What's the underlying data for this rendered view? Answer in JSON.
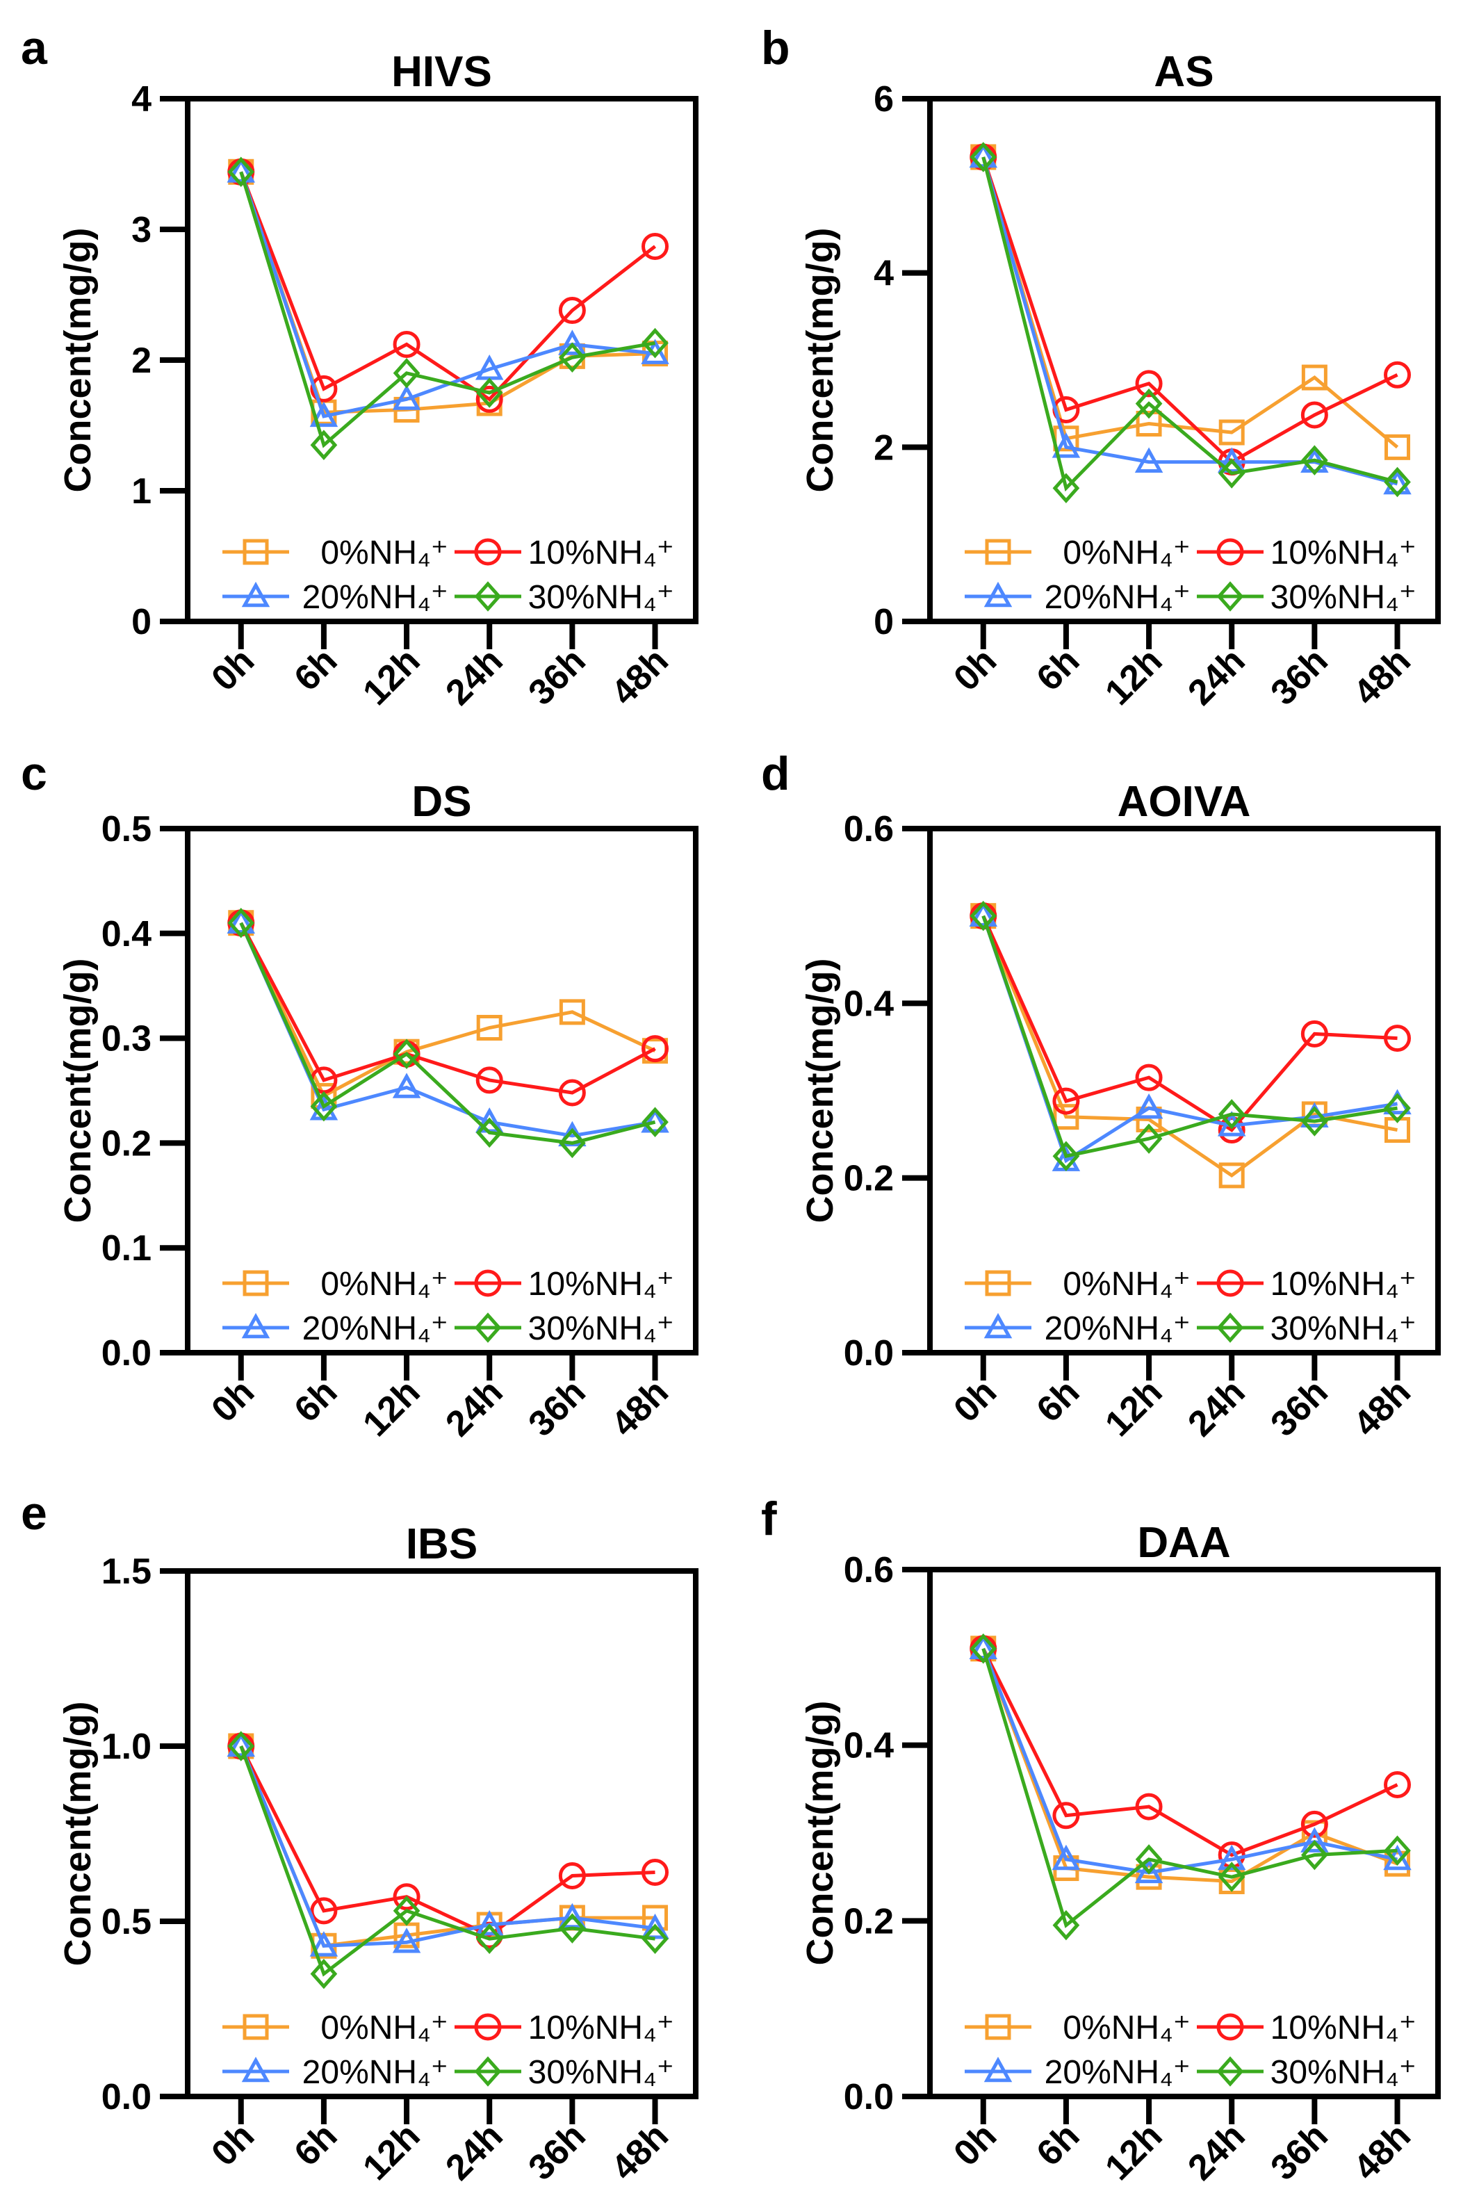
{
  "chart_data": [
    {
      "type": "line",
      "letter": "a",
      "title": "HIVS",
      "ylabel": "Concent(mg/g)",
      "categories": [
        "0h",
        "6h",
        "12h",
        "24h",
        "36h",
        "48h"
      ],
      "ylim": [
        0,
        4
      ],
      "yticks": [
        "0",
        "1",
        "2",
        "3",
        "4"
      ],
      "ytick_values": [
        0,
        1,
        2,
        3,
        4
      ],
      "legend": "bottom-inside",
      "series": [
        {
          "name": "0%NH₄⁺",
          "color": "#F7A030",
          "marker": "square",
          "values": [
            3.44,
            1.6,
            1.62,
            1.67,
            2.03,
            2.05
          ]
        },
        {
          "name": "10%NH₄⁺",
          "color": "#FF1A1A",
          "marker": "circle",
          "values": [
            3.44,
            1.78,
            2.12,
            1.7,
            2.38,
            2.87
          ]
        },
        {
          "name": "20%NH₄⁺",
          "color": "#4D88FF",
          "marker": "triangle",
          "values": [
            3.44,
            1.57,
            1.7,
            1.93,
            2.12,
            2.05
          ]
        },
        {
          "name": "30%NH₄⁺",
          "color": "#3AAA1E",
          "marker": "diamond",
          "values": [
            3.44,
            1.35,
            1.9,
            1.75,
            2.02,
            2.13
          ]
        }
      ]
    },
    {
      "type": "line",
      "letter": "b",
      "title": "AS",
      "ylabel": "Concent(mg/g)",
      "categories": [
        "0h",
        "6h",
        "12h",
        "24h",
        "36h",
        "48h"
      ],
      "ylim": [
        0,
        6
      ],
      "yticks": [
        "0",
        "2",
        "4",
        "6"
      ],
      "ytick_values": [
        0,
        2,
        4,
        6
      ],
      "legend": "bottom-inside",
      "series": [
        {
          "name": "0%NH₄⁺",
          "color": "#F7A030",
          "marker": "square",
          "values": [
            5.33,
            2.1,
            2.27,
            2.17,
            2.8,
            2.0
          ]
        },
        {
          "name": "10%NH₄⁺",
          "color": "#FF1A1A",
          "marker": "circle",
          "values": [
            5.33,
            2.43,
            2.73,
            1.83,
            2.37,
            2.83
          ]
        },
        {
          "name": "20%NH₄⁺",
          "color": "#4D88FF",
          "marker": "triangle",
          "values": [
            5.33,
            2.0,
            1.83,
            1.83,
            1.83,
            1.58
          ]
        },
        {
          "name": "30%NH₄⁺",
          "color": "#3AAA1E",
          "marker": "diamond",
          "values": [
            5.33,
            1.53,
            2.5,
            1.7,
            1.85,
            1.6
          ]
        }
      ]
    },
    {
      "type": "line",
      "letter": "c",
      "title": "DS",
      "ylabel": "Concent(mg/g)",
      "categories": [
        "0h",
        "6h",
        "12h",
        "24h",
        "36h",
        "48h"
      ],
      "ylim": [
        0,
        0.5
      ],
      "yticks": [
        "0.0",
        "0.1",
        "0.2",
        "0.3",
        "0.4",
        "0.5"
      ],
      "ytick_values": [
        0,
        0.1,
        0.2,
        0.3,
        0.4,
        0.5
      ],
      "legend": "bottom-inside",
      "series": [
        {
          "name": "0%NH₄⁺",
          "color": "#F7A030",
          "marker": "square",
          "values": [
            0.41,
            0.245,
            0.287,
            0.31,
            0.325,
            0.288
          ]
        },
        {
          "name": "10%NH₄⁺",
          "color": "#FF1A1A",
          "marker": "circle",
          "values": [
            0.41,
            0.26,
            0.285,
            0.26,
            0.248,
            0.29
          ]
        },
        {
          "name": "20%NH₄⁺",
          "color": "#4D88FF",
          "marker": "triangle",
          "values": [
            0.41,
            0.232,
            0.253,
            0.22,
            0.207,
            0.22
          ]
        },
        {
          "name": "30%NH₄⁺",
          "color": "#3AAA1E",
          "marker": "diamond",
          "values": [
            0.41,
            0.235,
            0.285,
            0.21,
            0.2,
            0.22
          ]
        }
      ]
    },
    {
      "type": "line",
      "letter": "d",
      "title": "AOIVA",
      "ylabel": "Concent(mg/g)",
      "categories": [
        "0h",
        "6h",
        "12h",
        "24h",
        "36h",
        "48h"
      ],
      "ylim": [
        0,
        0.6
      ],
      "yticks": [
        "0.0",
        "0.2",
        "0.4",
        "0.6"
      ],
      "ytick_values": [
        0,
        0.2,
        0.4,
        0.6
      ],
      "legend": "bottom-inside",
      "series": [
        {
          "name": "0%NH₄⁺",
          "color": "#F7A030",
          "marker": "square",
          "values": [
            0.5,
            0.27,
            0.267,
            0.203,
            0.273,
            0.255
          ]
        },
        {
          "name": "10%NH₄⁺",
          "color": "#FF1A1A",
          "marker": "circle",
          "values": [
            0.5,
            0.288,
            0.315,
            0.255,
            0.365,
            0.36
          ]
        },
        {
          "name": "20%NH₄⁺",
          "color": "#4D88FF",
          "marker": "triangle",
          "values": [
            0.5,
            0.22,
            0.28,
            0.26,
            0.27,
            0.285
          ]
        },
        {
          "name": "30%NH₄⁺",
          "color": "#3AAA1E",
          "marker": "diamond",
          "values": [
            0.5,
            0.225,
            0.245,
            0.273,
            0.265,
            0.28
          ]
        }
      ]
    },
    {
      "type": "line",
      "letter": "e",
      "title": "IBS",
      "ylabel": "Concent(mg/g)",
      "categories": [
        "0h",
        "6h",
        "12h",
        "24h",
        "36h",
        "48h"
      ],
      "ylim": [
        0,
        1.5
      ],
      "yticks": [
        "0.0",
        "0.5",
        "1.0",
        "1.5"
      ],
      "ytick_values": [
        0,
        0.5,
        1.0,
        1.5
      ],
      "legend": "bottom-inside",
      "series": [
        {
          "name": "0%NH₄⁺",
          "color": "#F7A030",
          "marker": "square",
          "values": [
            1.0,
            0.43,
            0.46,
            0.49,
            0.51,
            0.51
          ]
        },
        {
          "name": "10%NH₄⁺",
          "color": "#FF1A1A",
          "marker": "circle",
          "values": [
            1.0,
            0.53,
            0.57,
            0.46,
            0.63,
            0.64
          ]
        },
        {
          "name": "20%NH₄⁺",
          "color": "#4D88FF",
          "marker": "triangle",
          "values": [
            1.0,
            0.43,
            0.44,
            0.49,
            0.51,
            0.48
          ]
        },
        {
          "name": "30%NH₄⁺",
          "color": "#3AAA1E",
          "marker": "diamond",
          "values": [
            1.0,
            0.35,
            0.53,
            0.45,
            0.48,
            0.45
          ]
        }
      ]
    },
    {
      "type": "line",
      "letter": "f",
      "title": "DAA",
      "ylabel": "Concent(mg/g)",
      "categories": [
        "0h",
        "6h",
        "12h",
        "24h",
        "36h",
        "48h"
      ],
      "ylim": [
        0,
        0.6
      ],
      "yticks": [
        "0.0",
        "0.2",
        "0.4",
        "0.6"
      ],
      "ytick_values": [
        0,
        0.2,
        0.4,
        0.6
      ],
      "legend": "bottom-inside",
      "series": [
        {
          "name": "0%NH₄⁺",
          "color": "#F7A030",
          "marker": "square",
          "values": [
            0.51,
            0.26,
            0.25,
            0.245,
            0.3,
            0.265
          ]
        },
        {
          "name": "10%NH₄⁺",
          "color": "#FF1A1A",
          "marker": "circle",
          "values": [
            0.51,
            0.32,
            0.33,
            0.275,
            0.31,
            0.355
          ]
        },
        {
          "name": "20%NH₄⁺",
          "color": "#4D88FF",
          "marker": "triangle",
          "values": [
            0.51,
            0.27,
            0.255,
            0.27,
            0.29,
            0.27
          ]
        },
        {
          "name": "30%NH₄⁺",
          "color": "#3AAA1E",
          "marker": "diamond",
          "values": [
            0.51,
            0.195,
            0.27,
            0.25,
            0.275,
            0.28
          ]
        }
      ]
    }
  ]
}
